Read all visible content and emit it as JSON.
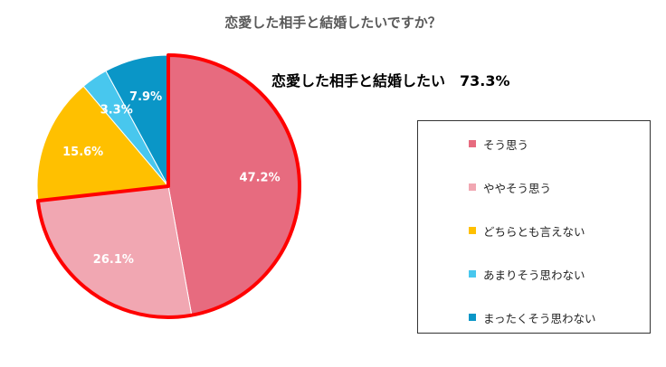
{
  "chart_data": {
    "type": "pie",
    "title": "恋愛した相手と結婚したいですか？",
    "callout": "恋愛した相手と結婚したい　73.3%",
    "categories": [
      "そう思う",
      "ややそう思う",
      "どちらとも言えない",
      "あまりそう思わない",
      "まったくそう思わない"
    ],
    "values": [
      47.2,
      26.1,
      15.6,
      3.3,
      7.9
    ],
    "data_labels": [
      "47.2%",
      "26.1%",
      "15.6%",
      "3.3%",
      "7.9%"
    ],
    "colors": [
      "#e76b7f",
      "#f1a7b2",
      "#ffc000",
      "#48c7ee",
      "#0a96c7"
    ],
    "highlight": {
      "slices": [
        0,
        1
      ],
      "color": "#ff0000"
    },
    "legend": "right"
  }
}
